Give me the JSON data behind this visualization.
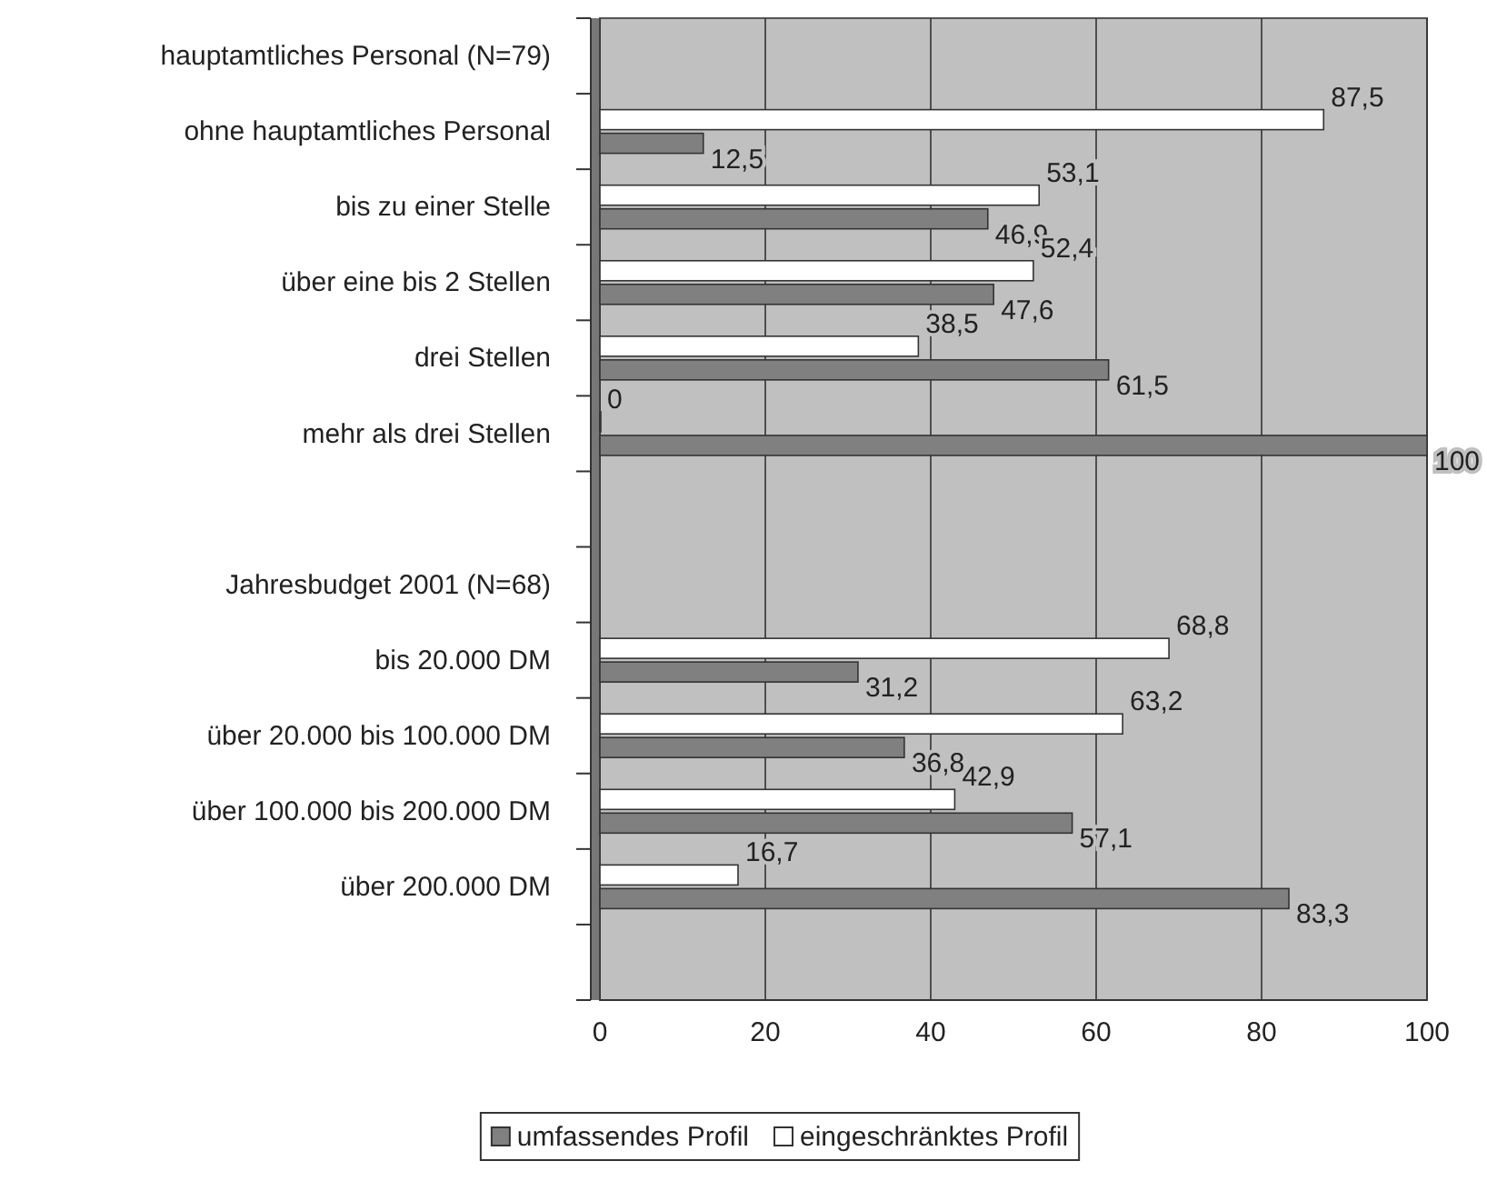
{
  "chart_data": {
    "type": "bar",
    "orientation": "horizontal",
    "categories": [
      "hauptamtliches Personal  (N=79)",
      "ohne hauptamtliches Personal",
      "bis zu einer Stelle",
      "über eine bis 2 Stellen",
      "drei Stellen",
      "mehr als drei Stellen",
      null,
      "Jahresbudget 2001 (N=68)",
      "bis 20.000 DM",
      "über 20.000 bis 100.000 DM",
      "über 100.000 bis 200.000 DM",
      "über 200.000 DM",
      null
    ],
    "series": [
      {
        "name": "umfassendes Profil",
        "color": "#808080",
        "values": [
          null,
          12.5,
          46.9,
          47.6,
          61.5,
          100,
          null,
          null,
          31.2,
          36.8,
          57.1,
          83.3,
          null
        ],
        "value_labels": [
          null,
          "12,5",
          "46,9",
          "47,6",
          "61,5",
          "100",
          null,
          null,
          "31,2",
          "36,8",
          "57,1",
          "83,3",
          null
        ]
      },
      {
        "name": "eingeschränktes Profil",
        "color": "#ffffff",
        "values": [
          null,
          87.5,
          53.1,
          52.4,
          38.5,
          0,
          null,
          null,
          68.8,
          63.2,
          42.9,
          16.7,
          null
        ],
        "value_labels": [
          null,
          "87,5",
          "53,1",
          "52,4",
          "38,5",
          "0",
          null,
          null,
          "68,8",
          "63,2",
          "42,9",
          "16,7",
          null
        ]
      }
    ],
    "xlim": [
      0,
      100
    ],
    "xticks": [
      0,
      20,
      40,
      60,
      80,
      100
    ],
    "grid": "x",
    "legend": "bottom"
  }
}
